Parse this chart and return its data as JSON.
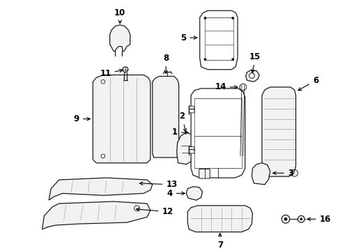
{
  "bg_color": "#ffffff",
  "fig_width": 4.89,
  "fig_height": 3.6,
  "dpi": 100,
  "line_color": "#1a1a1a",
  "label_color": "#000000",
  "label_fontsize": 8.5,
  "fill_color": "#ffffff",
  "parts_fill": "#f2f2f2"
}
